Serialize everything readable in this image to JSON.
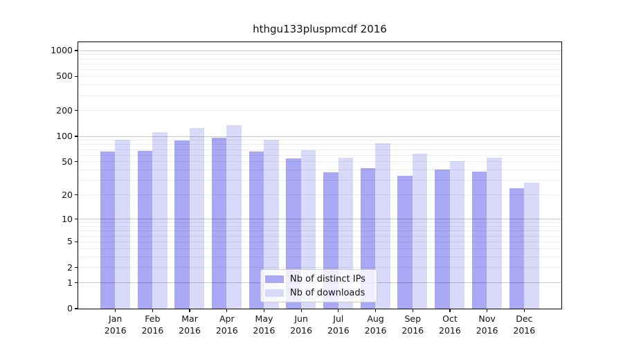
{
  "chart_data": {
    "type": "bar",
    "title": "hthgu133pluspmcdf 2016",
    "x_categories": [
      "Jan",
      "Feb",
      "Mar",
      "Apr",
      "May",
      "Jun",
      "Jul",
      "Aug",
      "Sep",
      "Oct",
      "Nov",
      "Dec"
    ],
    "x_year": "2016",
    "y_scale": "log1p",
    "y_ticks": [
      1000,
      500,
      200,
      100,
      50,
      20,
      10,
      5,
      2,
      1,
      0
    ],
    "ylim": [
      0,
      1245
    ],
    "grid": true,
    "legend_position": "bottom-center-inside",
    "series": [
      {
        "name": "Nb of distinct IPs",
        "color": "#a8a8f5",
        "values": [
          66,
          67,
          89,
          95,
          66,
          54,
          37,
          42,
          34,
          40,
          38,
          24
        ]
      },
      {
        "name": "Nb of downloads",
        "color": "#d9d9fa",
        "values": [
          91,
          111,
          124,
          135,
          91,
          68,
          55,
          82,
          62,
          50,
          55,
          28
        ]
      }
    ]
  },
  "colors": {
    "spine": "#000000",
    "major_grid": "rgba(0,0,0,0.21)",
    "minor_grid": "rgba(0,0,0,0.07)"
  }
}
